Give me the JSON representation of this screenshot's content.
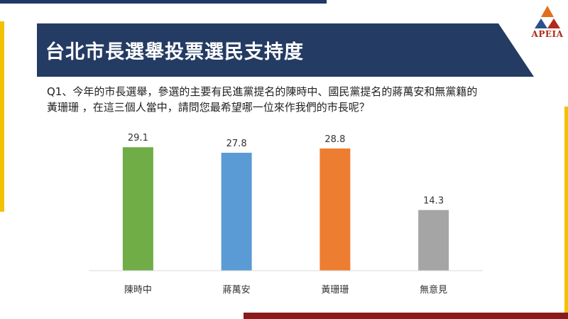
{
  "header": {
    "title": "台北市長選舉投票選民支持度"
  },
  "logo": {
    "text": "APEIA"
  },
  "question": {
    "line1": "Q1、今年的市長選舉，參選的主要有民進黨提名的陳時中、國民黨提名的蔣萬安和無黨籍的",
    "line2": "黃珊珊 ，在這三個人當中，請問您最希望哪一位來作我們的市長呢？"
  },
  "chart_data": {
    "type": "bar",
    "categories": [
      "陳時中",
      "蔣萬安",
      "黃珊珊",
      "無意見"
    ],
    "values": [
      29.1,
      27.8,
      28.8,
      14.3
    ],
    "value_labels": [
      "29.1",
      "27.8",
      "28.8",
      "14.3"
    ],
    "colors": [
      "#70ad47",
      "#5b9bd5",
      "#ed7d31",
      "#a5a5a5"
    ],
    "ylim": [
      0,
      35
    ],
    "grid": false,
    "legend": "none"
  }
}
